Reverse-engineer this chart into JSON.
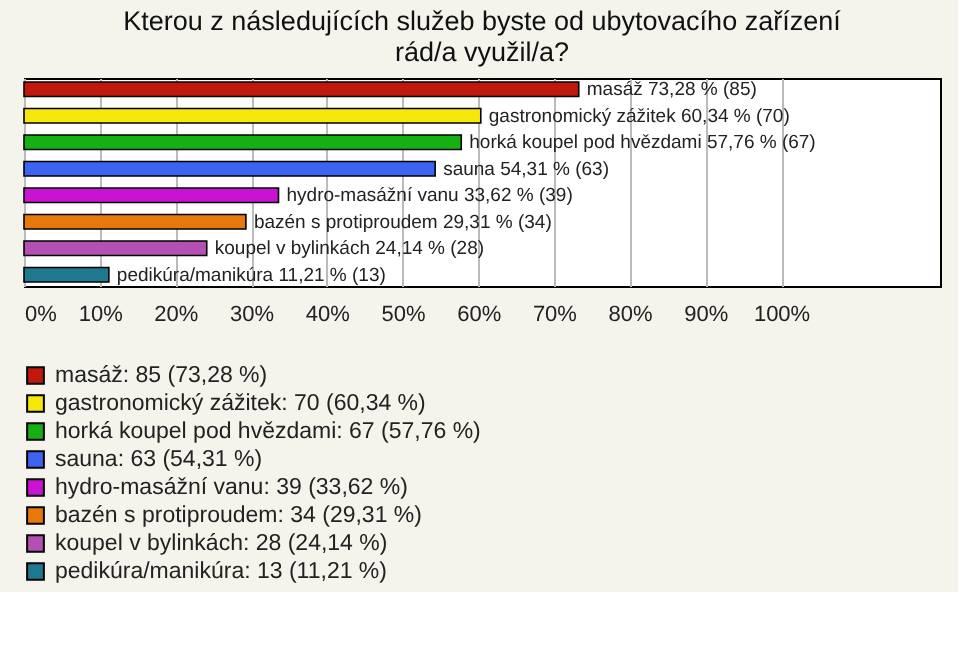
{
  "chart_data": {
    "type": "bar",
    "orientation": "horizontal",
    "title": "Kterou z následujících služeb byste od ubytovacího zařízení rád/a využil/a?",
    "categories": [
      null,
      null,
      null,
      null,
      null,
      null,
      null,
      null
    ],
    "series": [
      {
        "name": "masáž: 85 (73,28 %)",
        "color": "#c0180c",
        "values": [
          73.28,
          null,
          null,
          null,
          null,
          null,
          null,
          null
        ],
        "value_labels": [
          "masáž 73,28 % (85)",
          null,
          null,
          null,
          null,
          null,
          null,
          null
        ]
      },
      {
        "name": "gastronomický zážitek: 70 (60,34 %)",
        "color": "#f5e80a",
        "values": [
          null,
          60.34,
          null,
          null,
          null,
          null,
          null,
          null
        ],
        "value_labels": [
          null,
          "gastronomický zážitek 60,34 % (70)",
          null,
          null,
          null,
          null,
          null,
          null
        ]
      },
      {
        "name": "horká koupel pod hvězdami: 67 (57,76 %)",
        "color": "#14b014",
        "values": [
          null,
          null,
          57.76,
          null,
          null,
          null,
          null,
          null
        ],
        "value_labels": [
          null,
          null,
          "horká koupel pod hvězdami 57,76 % (67)",
          null,
          null,
          null,
          null,
          null
        ]
      },
      {
        "name": "sauna: 63 (54,31 %)",
        "color": "#3c64f0",
        "values": [
          null,
          null,
          null,
          54.31,
          null,
          null,
          null,
          null
        ],
        "value_labels": [
          null,
          null,
          null,
          "sauna 54,31 % (63)",
          null,
          null,
          null,
          null
        ]
      },
      {
        "name": "hydro-masážní vanu: 39 (33,62 %)",
        "color": "#c814d2",
        "values": [
          null,
          null,
          null,
          null,
          33.62,
          null,
          null,
          null
        ],
        "value_labels": [
          null,
          null,
          null,
          null,
          "hydro-masážní vanu 33,62 % (39)",
          null,
          null,
          null
        ]
      },
      {
        "name": "bazén s protiproudem: 34 (29,31 %)",
        "color": "#e8780a",
        "values": [
          null,
          null,
          null,
          null,
          null,
          29.31,
          null,
          null
        ],
        "value_labels": [
          null,
          null,
          null,
          null,
          null,
          "bazén s protiproudem 29,31 % (34)",
          null,
          null
        ]
      },
      {
        "name": "koupel v bylinkách: 28 (24,14 %)",
        "color": "#b450b4",
        "values": [
          null,
          null,
          null,
          null,
          null,
          null,
          24.14,
          null
        ],
        "value_labels": [
          null,
          null,
          null,
          null,
          null,
          null,
          "koupel v bylinkách 24,14 % (28)",
          null
        ]
      },
      {
        "name": "pedikúra/manikúra: 13 (11,21 %)",
        "color": "#1e7890",
        "values": [
          null,
          null,
          null,
          null,
          null,
          null,
          null,
          11.21
        ],
        "value_labels": [
          null,
          null,
          null,
          null,
          null,
          null,
          null,
          "pedikúra/manikúra 11,21 % (13)"
        ]
      }
    ],
    "xlim": [
      0,
      121
    ],
    "xticks": [
      {
        "value": 0,
        "label": "0%"
      },
      {
        "value": 10,
        "label": "10%"
      },
      {
        "value": 20,
        "label": "20%"
      },
      {
        "value": 30,
        "label": "30%"
      },
      {
        "value": 40,
        "label": "40%"
      },
      {
        "value": 50,
        "label": "50%"
      },
      {
        "value": 60,
        "label": "60%"
      },
      {
        "value": 70,
        "label": "70%"
      },
      {
        "value": 80,
        "label": "80%"
      },
      {
        "value": 90,
        "label": "90%"
      },
      {
        "value": 100,
        "label": "100%"
      }
    ],
    "grid": "x",
    "legend": "bottom"
  }
}
